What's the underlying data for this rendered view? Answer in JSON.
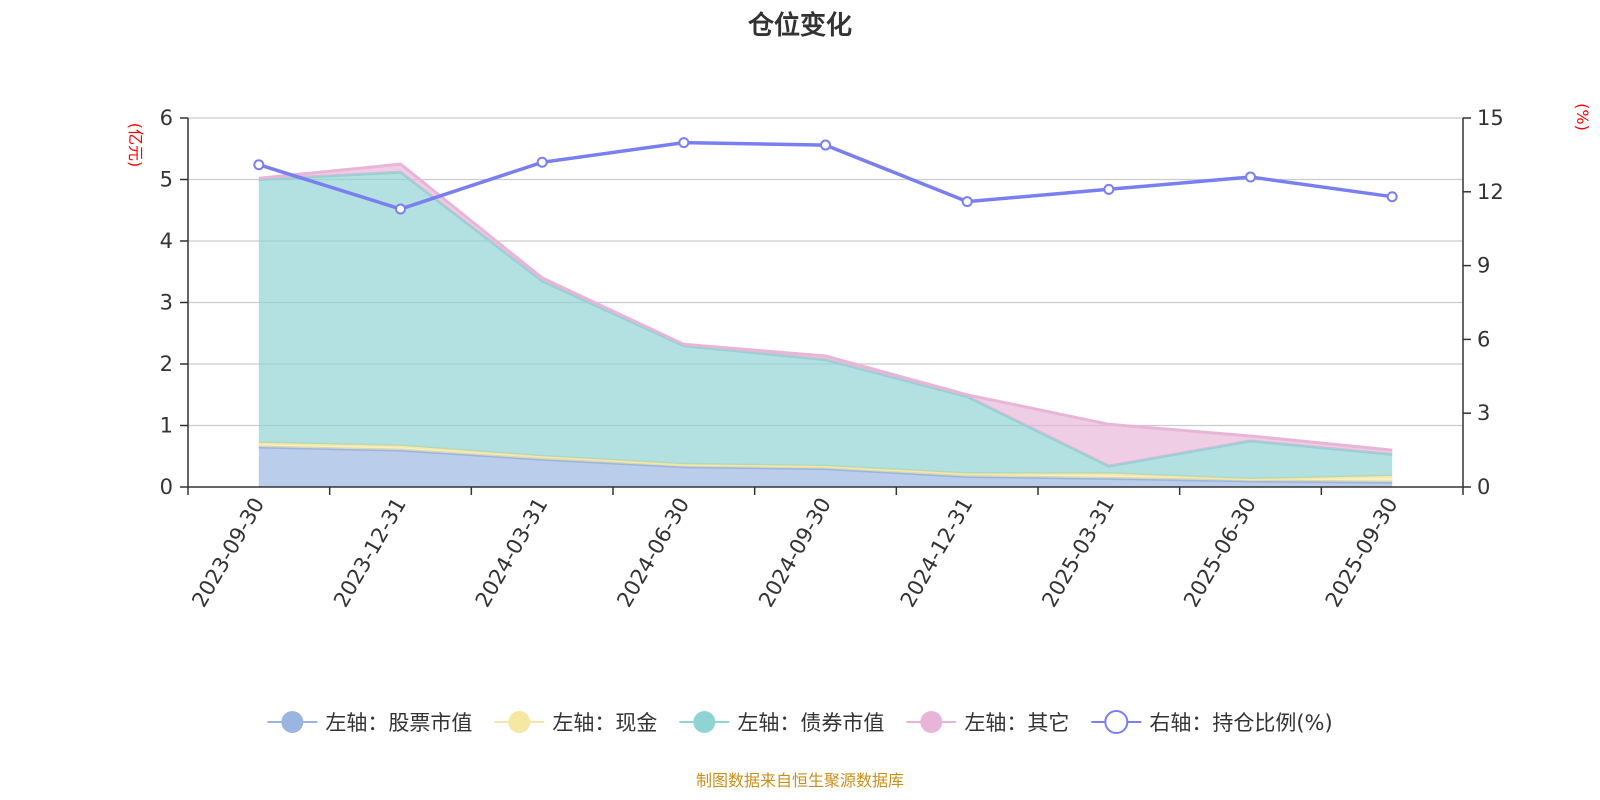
{
  "chart_data": {
    "type": "area",
    "title": "仓位变化",
    "categories": [
      "2023-09-30",
      "2023-12-31",
      "2024-03-31",
      "2024-06-30",
      "2024-09-30",
      "2024-12-31",
      "2025-03-31",
      "2025-06-30",
      "2025-09-30"
    ],
    "left_axis": {
      "unit_label": "(亿元)",
      "ylim": [
        0,
        6
      ],
      "ticks": [
        "0",
        "1",
        "2",
        "3",
        "4",
        "5",
        "6"
      ]
    },
    "right_axis": {
      "unit_label": "(%)",
      "ylim": [
        0,
        15
      ],
      "ticks": [
        "0",
        "3",
        "6",
        "9",
        "12",
        "15"
      ]
    },
    "stacked_series": [
      {
        "name": "左轴：股票市值",
        "color": "#9ab5e0",
        "values": [
          0.65,
          0.6,
          0.45,
          0.33,
          0.3,
          0.17,
          0.14,
          0.1,
          0.08
        ]
      },
      {
        "name": "左轴：现金",
        "color": "#f6e7a2",
        "values": [
          0.07,
          0.07,
          0.05,
          0.04,
          0.04,
          0.05,
          0.08,
          0.03,
          0.1
        ]
      },
      {
        "name": "左轴：债券市值",
        "color": "#8fd3d3",
        "values": [
          4.28,
          4.45,
          2.85,
          1.93,
          1.73,
          1.25,
          0.12,
          0.62,
          0.35
        ]
      },
      {
        "name": "左轴：其它",
        "color": "#e8b5d8",
        "values": [
          0.02,
          0.13,
          0.05,
          0.02,
          0.06,
          0.03,
          0.68,
          0.08,
          0.07
        ]
      }
    ],
    "line_series": {
      "name": "右轴：持仓比例(%)",
      "color": "#7a7ff0",
      "axis": "right",
      "values": [
        13.1,
        11.3,
        13.2,
        14.0,
        13.9,
        11.6,
        12.1,
        12.6,
        11.8
      ]
    },
    "grid": true,
    "legend_position": "bottom"
  },
  "footer": {
    "source": "制图数据来自恒生聚源数据库"
  }
}
